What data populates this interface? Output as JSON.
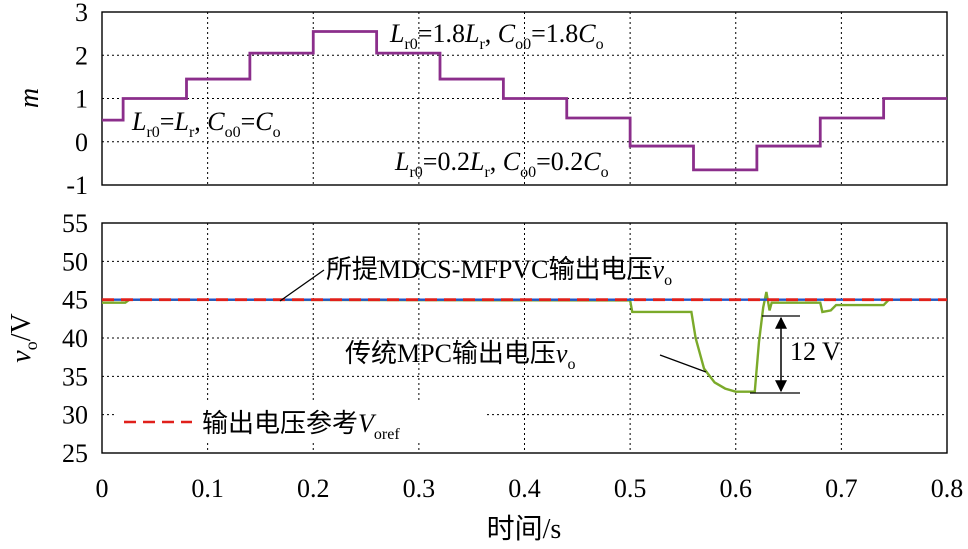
{
  "chart_data": [
    {
      "type": "line",
      "ylabel": "m",
      "ylim": [
        -1,
        3
      ],
      "yticks": [
        -1,
        0,
        1,
        2,
        3
      ],
      "xlim": [
        0,
        0.8
      ],
      "grid": true,
      "series": [
        {
          "color": "#8B2E8B",
          "step": true,
          "points": [
            [
              0,
              0.5
            ],
            [
              0.02,
              0.5
            ],
            [
              0.02,
              1.0
            ],
            [
              0.08,
              1.0
            ],
            [
              0.08,
              1.45
            ],
            [
              0.14,
              1.45
            ],
            [
              0.14,
              2.05
            ],
            [
              0.2,
              2.05
            ],
            [
              0.2,
              2.55
            ],
            [
              0.26,
              2.55
            ],
            [
              0.26,
              2.05
            ],
            [
              0.32,
              2.05
            ],
            [
              0.32,
              1.45
            ],
            [
              0.38,
              1.45
            ],
            [
              0.38,
              1.0
            ],
            [
              0.44,
              1.0
            ],
            [
              0.44,
              0.55
            ],
            [
              0.5,
              0.55
            ],
            [
              0.5,
              -0.1
            ],
            [
              0.56,
              -0.1
            ],
            [
              0.56,
              -0.65
            ],
            [
              0.62,
              -0.65
            ],
            [
              0.62,
              -0.1
            ],
            [
              0.68,
              -0.1
            ],
            [
              0.68,
              0.55
            ],
            [
              0.74,
              0.55
            ],
            [
              0.74,
              1.0
            ],
            [
              0.8,
              1.0
            ]
          ]
        }
      ],
      "annotations": {
        "top": [
          "L",
          "r0",
          "=1.8",
          "L",
          "r",
          ", ",
          "C",
          "o0",
          "=1.8",
          "C",
          "o"
        ],
        "middle": [
          "L",
          "r0",
          "=",
          "L",
          "r",
          ", ",
          "C",
          "o0",
          "=",
          "C",
          "o"
        ],
        "bottom": [
          "L",
          "r0",
          "=0.2",
          "L",
          "r",
          ", ",
          "C",
          "o0",
          "=0.2",
          "C",
          "o"
        ]
      }
    },
    {
      "type": "line",
      "ylabel": [
        "v",
        "o",
        "/V"
      ],
      "xlabel": "时间/s",
      "xlim": [
        0,
        0.8
      ],
      "ylim": [
        25,
        55
      ],
      "xticks": [
        "0",
        "0.1",
        "0.2",
        "0.3",
        "0.4",
        "0.5",
        "0.6",
        "0.7",
        "0.8"
      ],
      "yticks": [
        "25",
        "30",
        "35",
        "40",
        "45",
        "50",
        "55"
      ],
      "grid": true,
      "legend_placement": "bottom-left",
      "series": [
        {
          "legend": [
            "输出电压参考",
            "V",
            "oref"
          ],
          "color": "#E0201B",
          "dashed": true,
          "points": [
            [
              0,
              45
            ],
            [
              0.8,
              45
            ]
          ]
        },
        {
          "label": [
            "所提MDCS-MFPVC输出电压",
            "v",
            "o"
          ],
          "color": "#2255C8",
          "points": [
            [
              0,
              45
            ],
            [
              0.8,
              45
            ]
          ]
        },
        {
          "label": [
            "传统MPC输出电压",
            "v",
            "o"
          ],
          "color": "#7BAA2A",
          "points": [
            [
              0,
              44.6
            ],
            [
              0.022,
              44.6
            ],
            [
              0.026,
              45.0
            ],
            [
              0.5,
              44.9
            ],
            [
              0.502,
              43.4
            ],
            [
              0.558,
              43.4
            ],
            [
              0.562,
              40.0
            ],
            [
              0.57,
              36.0
            ],
            [
              0.58,
              34.2
            ],
            [
              0.59,
              33.4
            ],
            [
              0.6,
              33.0
            ],
            [
              0.618,
              33.0
            ],
            [
              0.622,
              39.5
            ],
            [
              0.626,
              44.0
            ],
            [
              0.629,
              46.0
            ],
            [
              0.632,
              43.6
            ],
            [
              0.634,
              44.6
            ],
            [
              0.66,
              44.6
            ],
            [
              0.68,
              44.6
            ],
            [
              0.682,
              43.4
            ],
            [
              0.69,
              43.6
            ],
            [
              0.695,
              44.3
            ],
            [
              0.74,
              44.3
            ],
            [
              0.745,
              45.0
            ],
            [
              0.8,
              45.0
            ]
          ]
        }
      ],
      "annotations": {
        "delta": "12 V"
      }
    }
  ]
}
